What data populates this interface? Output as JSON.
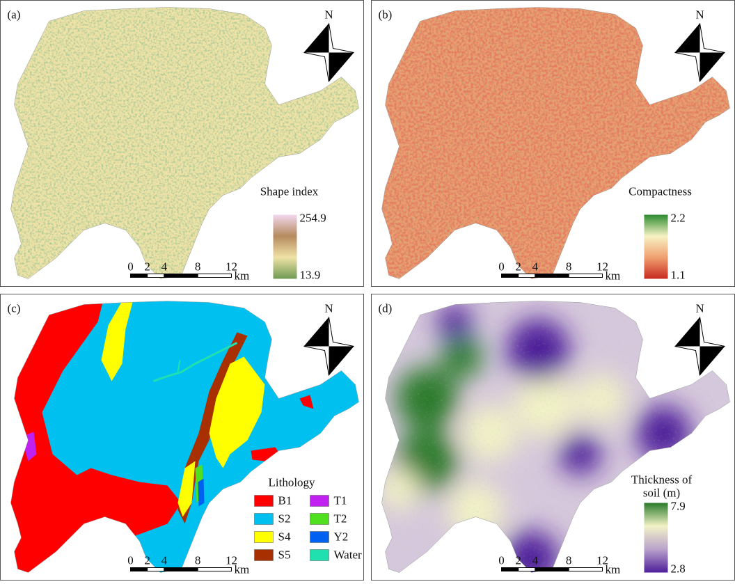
{
  "panels": [
    {
      "label": "(a)",
      "north": "N",
      "legend": {
        "title": "Shape index",
        "max": 254.9,
        "min": 13.9,
        "colors": [
          "#f2d8ee",
          "#b58a5e",
          "#efe2a6",
          "#6f9a52"
        ]
      },
      "scale": {
        "ticks": [
          0,
          2,
          4,
          8,
          12
        ],
        "unit": "km"
      }
    },
    {
      "label": "(b)",
      "north": "N",
      "legend": {
        "title": "Compactness",
        "max": 2.2,
        "min": 1.1,
        "colors": [
          "#2b8a2e",
          "#f7f2c4",
          "#f0a070",
          "#c62a1e"
        ]
      },
      "scale": {
        "ticks": [
          0,
          2,
          4,
          8,
          12
        ],
        "unit": "km"
      }
    },
    {
      "label": "(c)",
      "north": "N",
      "legend": {
        "title": "Lithology",
        "items": [
          {
            "name": "B1",
            "color": "#ff0000"
          },
          {
            "name": "S2",
            "color": "#00c0f0"
          },
          {
            "name": "S4",
            "color": "#ffff00"
          },
          {
            "name": "S5",
            "color": "#a83000"
          },
          {
            "name": "T1",
            "color": "#c020f0"
          },
          {
            "name": "T2",
            "color": "#50e020"
          },
          {
            "name": "Y2",
            "color": "#0060f0"
          },
          {
            "name": "Water",
            "color": "#20e0b0"
          }
        ]
      },
      "scale": {
        "ticks": [
          0,
          2,
          4,
          8,
          12
        ],
        "unit": "km"
      }
    },
    {
      "label": "(d)",
      "north": "N",
      "legend": {
        "title_lines": [
          "Thickness of",
          "soil (m)"
        ],
        "max": 7.9,
        "min": 2.8,
        "colors": [
          "#2a7a2a",
          "#f2f2c6",
          "#b9a2cc",
          "#4e1f9a"
        ]
      },
      "scale": {
        "ticks": [
          0,
          2,
          4,
          8,
          12
        ],
        "unit": "km"
      }
    }
  ]
}
